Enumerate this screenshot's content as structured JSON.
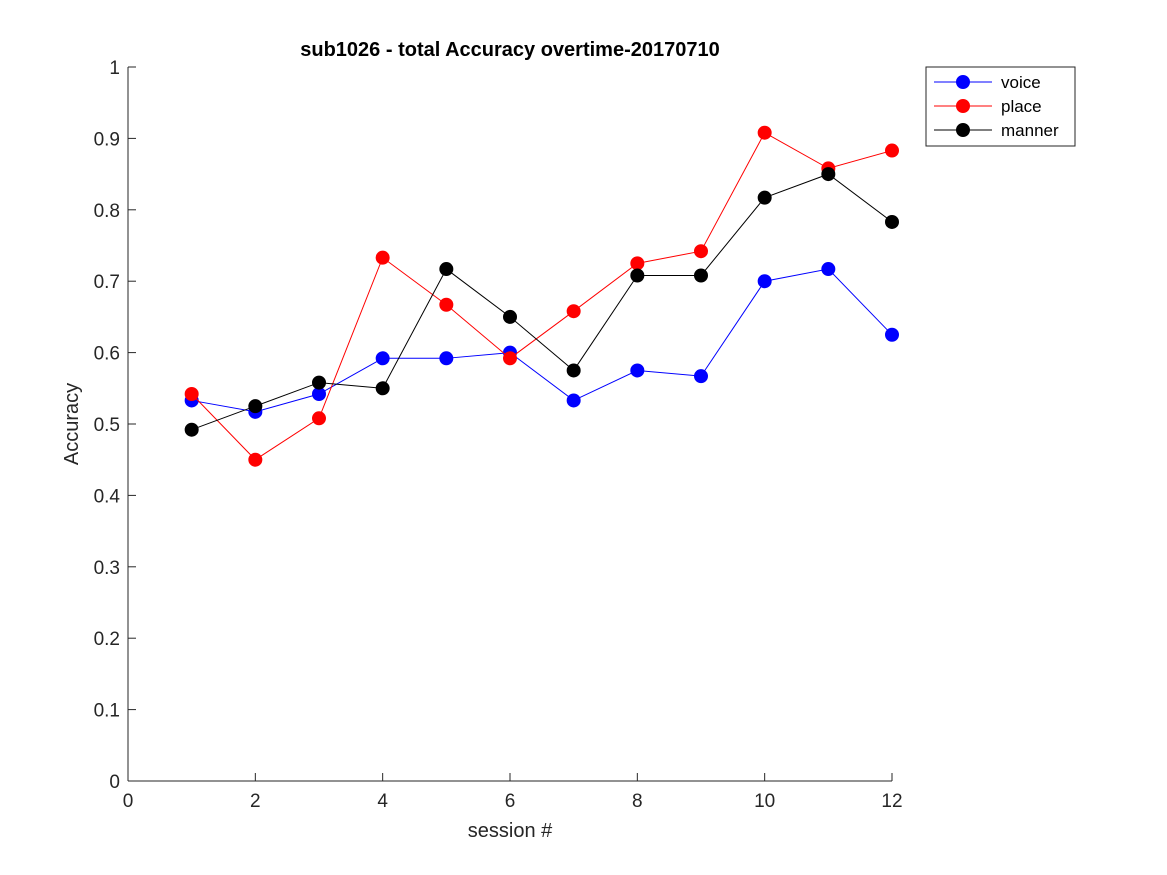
{
  "chart_data": {
    "type": "line",
    "title": "sub1026 - total Accuracy overtime-20170710",
    "xlabel": "session #",
    "ylabel": "Accuracy",
    "xlim": [
      0,
      12
    ],
    "ylim": [
      0,
      1
    ],
    "xticks": [
      0,
      2,
      4,
      6,
      8,
      10,
      12
    ],
    "xtick_labels": [
      "0",
      "2",
      "4",
      "6",
      "8",
      "10",
      "12"
    ],
    "yticks": [
      0,
      0.1,
      0.2,
      0.3,
      0.4,
      0.5,
      0.6,
      0.7,
      0.8,
      0.9,
      1
    ],
    "ytick_labels": [
      "0",
      "0.1",
      "0.2",
      "0.3",
      "0.4",
      "0.5",
      "0.6",
      "0.7",
      "0.8",
      "0.9",
      "1"
    ],
    "grid": false,
    "legend_position": "top-right, outside",
    "x": [
      1,
      2,
      3,
      4,
      5,
      6,
      7,
      8,
      9,
      10,
      11,
      12
    ],
    "series": [
      {
        "name": "voice",
        "color": "#0000ff",
        "marker": "circle",
        "values": [
          0.533,
          0.517,
          0.542,
          0.592,
          0.592,
          0.6,
          0.533,
          0.575,
          0.567,
          0.7,
          0.717,
          0.625
        ]
      },
      {
        "name": "place",
        "color": "#ff0000",
        "marker": "circle",
        "values": [
          0.542,
          0.45,
          0.508,
          0.733,
          0.667,
          0.592,
          0.658,
          0.725,
          0.742,
          0.908,
          0.858,
          0.883
        ]
      },
      {
        "name": "manner",
        "color": "#000000",
        "marker": "circle",
        "values": [
          0.492,
          0.525,
          0.558,
          0.55,
          0.717,
          0.65,
          0.575,
          0.708,
          0.708,
          0.817,
          0.85,
          0.783
        ]
      }
    ]
  }
}
